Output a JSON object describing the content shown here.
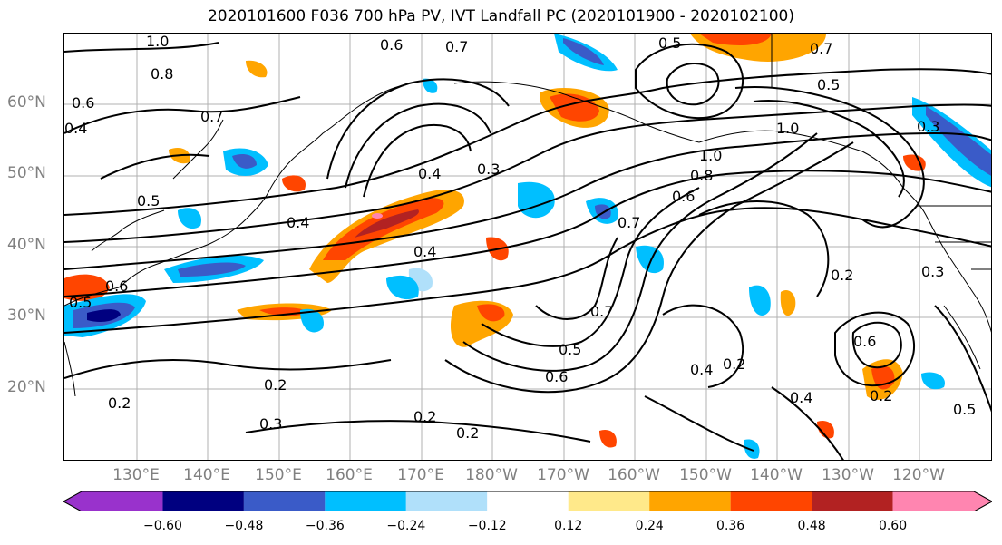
{
  "title": "2020101600 F036 700 hPa PV, IVT Landfall PC (2020101900 - 2020102100)",
  "lat_labels": [
    "60°N",
    "50°N",
    "40°N",
    "30°N",
    "20°N"
  ],
  "lon_labels": [
    "130°E",
    "140°E",
    "150°E",
    "160°E",
    "170°E",
    "180°W",
    "170°W",
    "160°W",
    "150°W",
    "140°W",
    "130°W",
    "120°W"
  ],
  "contour_labels": [
    "1.0",
    "0.6",
    "0.7",
    "0.5",
    "0.8",
    "0.6",
    "0.7",
    "0.4",
    "0.3",
    "0.4",
    "0.5",
    "0.4",
    "0.4",
    "0.7",
    "0.5",
    "0.6",
    "0.2",
    "0.2",
    "0.3",
    "0.2",
    "0.2",
    "1.0",
    "0.8",
    "0.6",
    "0.7",
    "0.5",
    "0.6",
    "0.4",
    "0.2",
    "0.4",
    "0.2",
    "0.3",
    "0.2",
    "1.0",
    "0.7",
    "0.5",
    "0.6",
    "0.5",
    "0.3"
  ],
  "colorbar": {
    "colors": [
      "#9932CC",
      "#000080",
      "#3A5BC8",
      "#00BFFF",
      "#B0E0FA",
      "#FFFFFF",
      "#FFE98A",
      "#FFA500",
      "#FF4500",
      "#B22222",
      "#FF85B0"
    ],
    "ticks": [
      "−0.60",
      "−0.48",
      "−0.36",
      "−0.24",
      "−0.12",
      "0.12",
      "0.24",
      "0.36",
      "0.48",
      "0.60"
    ]
  }
}
